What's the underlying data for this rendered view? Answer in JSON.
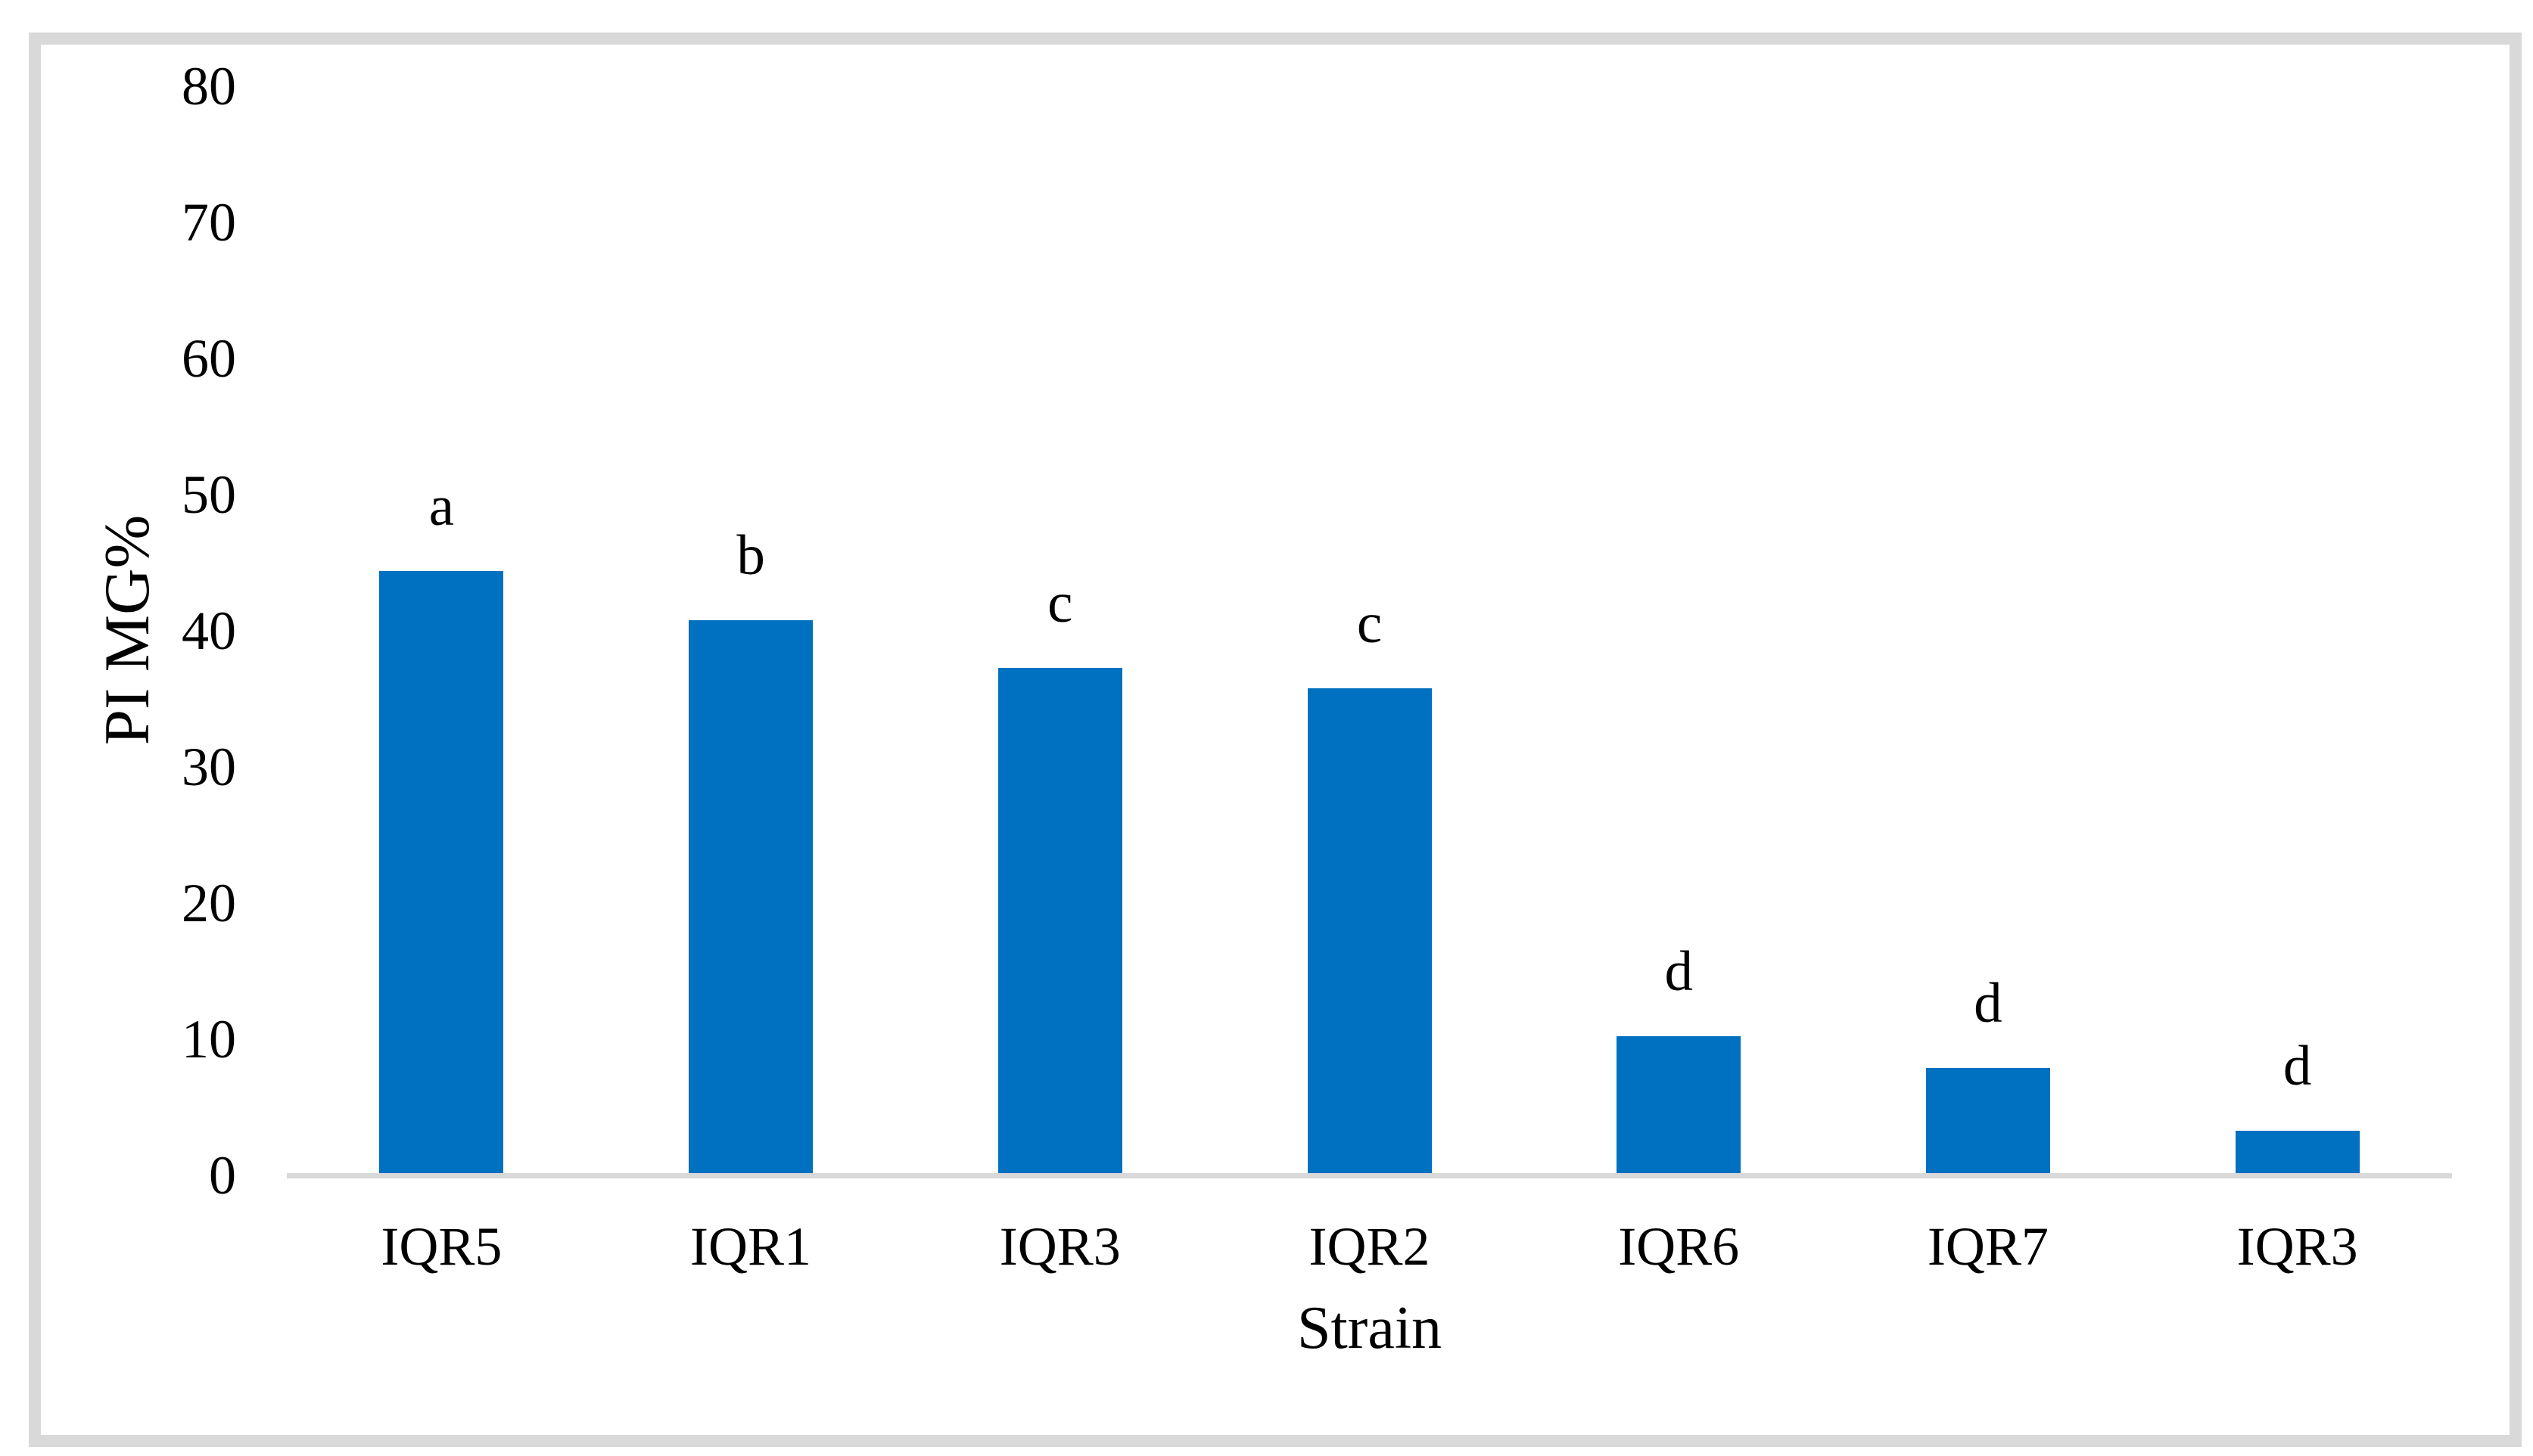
{
  "figure": {
    "background": "#FFFFFF",
    "border_color": "#D9D9D9"
  },
  "chart_data": {
    "type": "bar",
    "title": "",
    "categories": [
      "IQR5",
      "IQR1",
      "IQR3",
      "IQR2",
      "IQR6",
      "IQR7",
      "IQR3"
    ],
    "values": [
      44.4,
      40.8,
      37.3,
      35.8,
      10.2,
      7.9,
      3.3
    ],
    "bar_annotations": [
      "a",
      "b",
      "c",
      "c",
      "d",
      "d",
      "d"
    ],
    "xlabel": "Strain",
    "ylabel": "PI MG%",
    "ylim": [
      0,
      80
    ],
    "yticks": [
      0,
      10,
      20,
      30,
      40,
      50,
      60,
      70,
      80
    ],
    "bar_color": "#0070C0",
    "axis_line_color": "#D9D9D9",
    "grid": false,
    "legend_position": "none"
  }
}
